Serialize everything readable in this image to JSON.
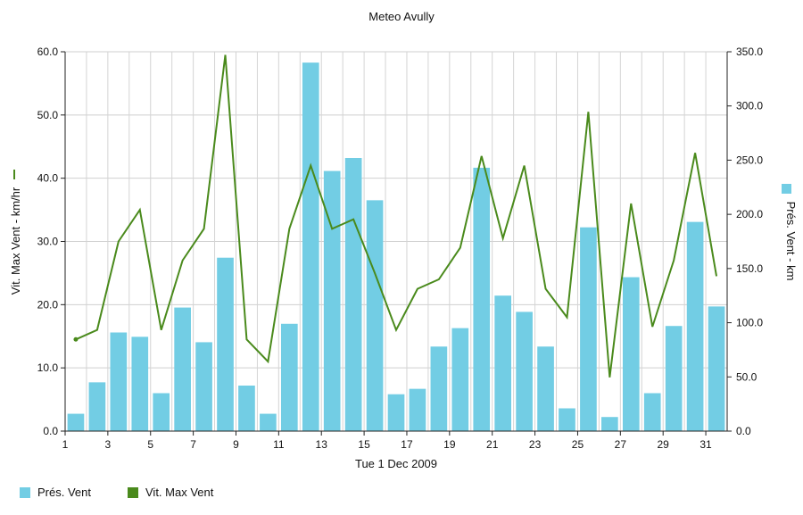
{
  "chart_data": {
    "type": "bar+line",
    "title": "Meteo  Avully",
    "xlabel": "Tue 1 Dec 2009",
    "ylabel_left": "Vit. Max Vent - km/hr",
    "ylabel_right": "Prés. Vent - km",
    "ylim_left": [
      0,
      60
    ],
    "ylim_right": [
      0,
      350
    ],
    "yticks_left": [
      "0.0",
      "10.0",
      "20.0",
      "30.0",
      "40.0",
      "50.0",
      "60.0"
    ],
    "yticks_right": [
      "0.0",
      "50.0",
      "100.0",
      "150.0",
      "200.0",
      "250.0",
      "300.0",
      "350.0"
    ],
    "x": [
      1,
      2,
      3,
      4,
      5,
      6,
      7,
      8,
      9,
      10,
      11,
      12,
      13,
      14,
      15,
      16,
      17,
      18,
      19,
      20,
      21,
      22,
      23,
      24,
      25,
      26,
      27,
      28,
      29,
      30,
      31
    ],
    "xticks": [
      "1",
      "3",
      "5",
      "7",
      "9",
      "11",
      "13",
      "15",
      "17",
      "19",
      "21",
      "23",
      "25",
      "27",
      "29",
      "31"
    ],
    "grid": true,
    "series": [
      {
        "name": "Prés. Vent",
        "type": "bar",
        "axis": "right",
        "color": "#72cde4",
        "values": [
          16,
          45,
          91,
          87,
          35,
          114,
          82,
          160,
          42,
          16,
          99,
          340,
          240,
          252,
          213,
          34,
          39,
          78,
          95,
          243,
          125,
          110,
          78,
          21,
          188,
          13,
          142,
          35,
          97,
          193,
          115
        ]
      },
      {
        "name": "Vit. Max Vent",
        "type": "line",
        "axis": "left",
        "color": "#4a8a1c",
        "values": [
          14.5,
          16,
          30,
          35,
          16,
          27,
          32,
          59.5,
          14.5,
          11,
          32,
          42,
          32,
          33.5,
          25,
          16,
          22.5,
          24,
          29,
          43.5,
          30.5,
          42,
          22.5,
          18,
          50.5,
          8.5,
          36,
          16.5,
          27,
          44,
          24.5
        ]
      }
    ],
    "legend_position": "bottom-left"
  },
  "legend": {
    "items": [
      {
        "label": "Prés. Vent",
        "color": "#72cde4"
      },
      {
        "label": "Vit. Max Vent",
        "color": "#4a8a1c"
      }
    ]
  }
}
